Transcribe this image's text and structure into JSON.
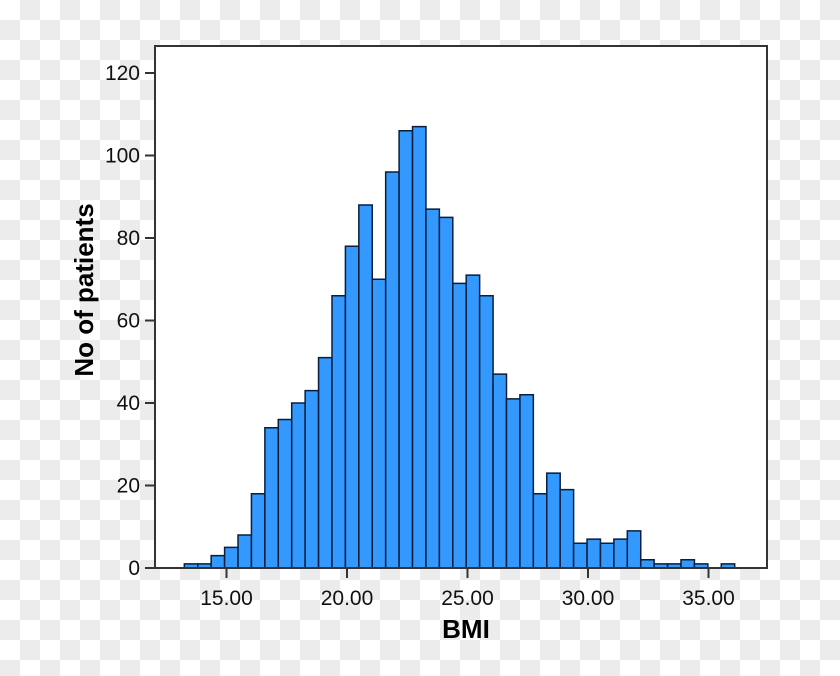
{
  "chart_data": {
    "type": "bar",
    "subtype": "histogram",
    "title": "",
    "xlabel": "BMI",
    "ylabel": "No of patients",
    "ylim": [
      0,
      125
    ],
    "yticks": [
      0,
      20,
      40,
      60,
      80,
      100,
      120
    ],
    "xticks": [
      15,
      20,
      25,
      30,
      35
    ],
    "xtick_labels": [
      "15.00",
      "20.00",
      "25.00",
      "30.00",
      "35.00"
    ],
    "xlim": [
      11.95,
      37.4
    ],
    "bin_start": 13.25,
    "bin_width": 0.557,
    "values": [
      1,
      1,
      3,
      5,
      8,
      18,
      34,
      36,
      40,
      43,
      51,
      66,
      78,
      88,
      70,
      96,
      106,
      107,
      87,
      85,
      69,
      71,
      66,
      47,
      41,
      42,
      18,
      23,
      19,
      6,
      7,
      6,
      7,
      9,
      2,
      1,
      1,
      2,
      1,
      0,
      1
    ],
    "grid": false,
    "legend": null,
    "colors": {
      "bar_fill": "#3399ff",
      "bar_edge": "#0a1e3c",
      "frame": "#333333"
    }
  }
}
